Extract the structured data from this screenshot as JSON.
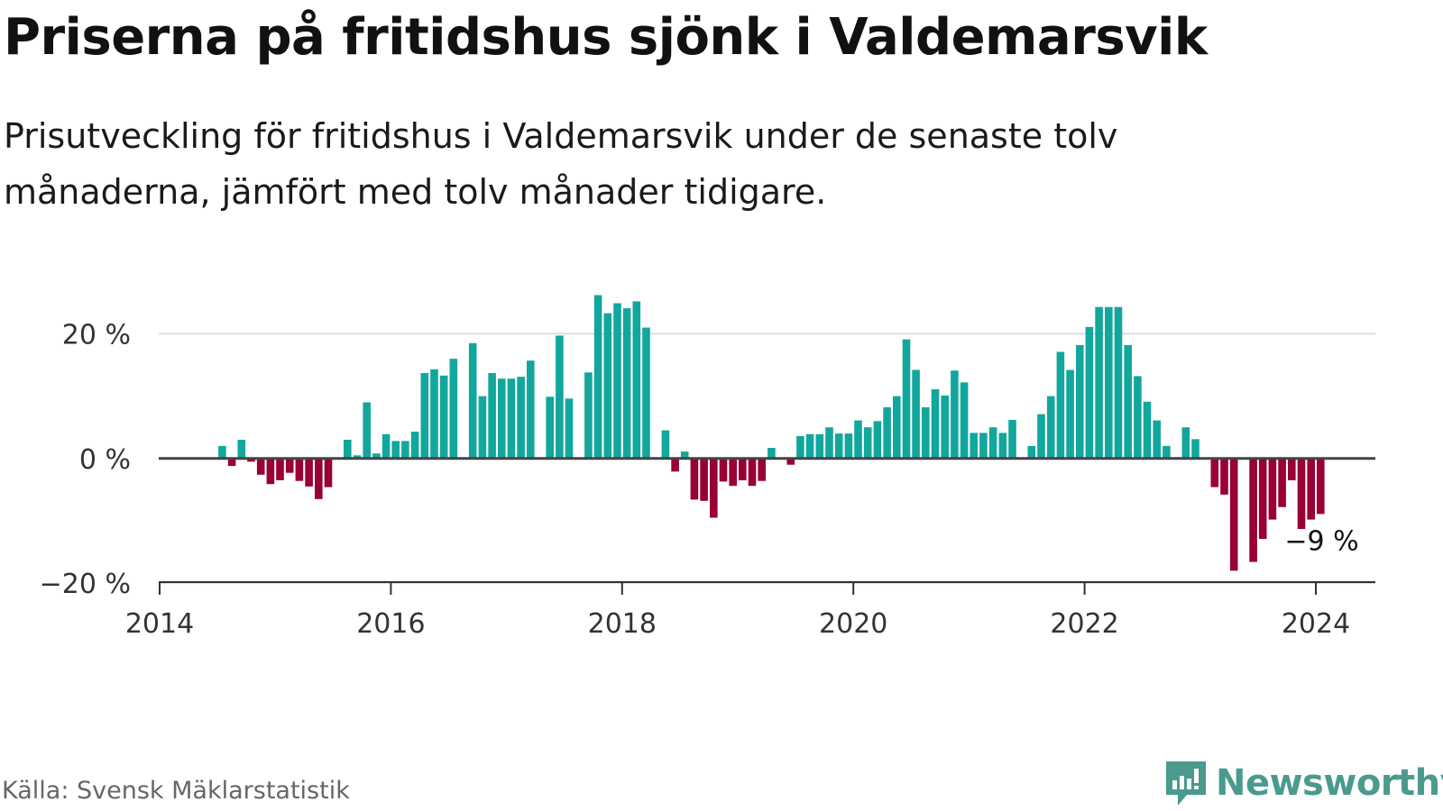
{
  "title": "Priserna på fritidshus sjönk i Valdemarsvik",
  "subtitle": "Prisutveckling för fritidshus i Valdemarsvik under de senaste tolv månaderna, jämfört med tolv månader tidigare.",
  "source": "Källa: Svensk Mäklarstatistik",
  "brand": "Newsworthy",
  "colors": {
    "positive": "#12a79d",
    "negative": "#990033",
    "brand": "#4a9a8e",
    "zero_line": "#444444",
    "grid": "#dddddd"
  },
  "chart_data": {
    "type": "bar",
    "y_unit": "%",
    "x_start": "2014-01",
    "ylim": [
      -21,
      27
    ],
    "y_ticks": [
      {
        "value": 20,
        "label": "20 %"
      },
      {
        "value": 0,
        "label": "0 %"
      },
      {
        "value": -20,
        "label": "−20 %"
      }
    ],
    "x_ticks": [
      {
        "year": 2014,
        "label": "2014"
      },
      {
        "year": 2016,
        "label": "2016"
      },
      {
        "year": 2018,
        "label": "2018"
      },
      {
        "year": 2020,
        "label": "2020"
      },
      {
        "year": 2022,
        "label": "2022"
      },
      {
        "year": 2024,
        "label": "2024"
      }
    ],
    "annotation": {
      "label": "−9 %",
      "index": 120
    },
    "values": [
      null,
      null,
      null,
      null,
      null,
      null,
      2,
      -1.2,
      3,
      -0.5,
      -2.6,
      -4.1,
      -3.5,
      -2.3,
      -3.6,
      -4.5,
      -6.5,
      -4.6,
      null,
      3,
      0.5,
      9,
      0.8,
      3.9,
      2.8,
      2.8,
      4.3,
      13.7,
      14.3,
      13.3,
      16,
      null,
      18.5,
      10,
      13.7,
      12.8,
      12.8,
      13.1,
      15.7,
      null,
      9.9,
      19.7,
      9.6,
      null,
      13.8,
      26.2,
      23.3,
      24.9,
      24.1,
      25.2,
      21,
      null,
      4.5,
      -2.1,
      1.1,
      -6.6,
      -6.8,
      -9.5,
      -3.7,
      -4.4,
      -3.5,
      -4.4,
      -3.6,
      1.7,
      null,
      -1,
      3.6,
      3.9,
      3.9,
      5,
      4,
      4,
      6.1,
      5,
      6,
      8.2,
      10,
      19.1,
      14.2,
      8.2,
      11.1,
      10.1,
      14.1,
      12.2,
      4.1,
      4.1,
      5,
      4.1,
      6.2,
      null,
      2,
      7.1,
      10,
      17.1,
      14.2,
      18.2,
      21.1,
      24.3,
      24.3,
      24.3,
      18.2,
      13.2,
      9.1,
      6.1,
      2,
      null,
      5,
      3.1,
      null,
      -4.6,
      -5.8,
      -18,
      null,
      -16.6,
      -12.9,
      -9.8,
      -7.8,
      -3.5,
      -11.3,
      -9.8,
      -8.9
    ]
  }
}
